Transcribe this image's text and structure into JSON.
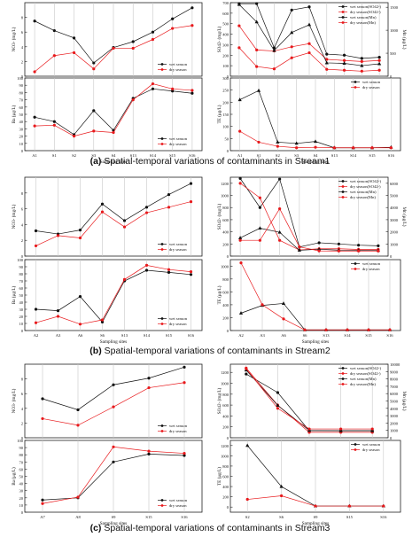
{
  "colors": {
    "wet": "#111111",
    "dry": "#e8191c",
    "grid": "#c8c8c8"
  },
  "legend": {
    "wet": "wet season",
    "dry": "dry season"
  },
  "captions": [
    {
      "label": "(a)",
      "text": "Spatial-temporal variations of contaminants in Stream1"
    },
    {
      "label": "(b)",
      "text": "Spatial-temporal variations of contaminants in Stream2"
    },
    {
      "label": "(c)",
      "text": "Spatial-temporal variations of contaminants in Stream3"
    }
  ],
  "chart_data": [
    {
      "panel": "a-left-top",
      "type": "line",
      "categories": [
        "A1",
        "S1",
        "S2",
        "S3",
        "S4",
        "S13",
        "S14",
        "S15",
        "S16"
      ],
      "ylabel": "NO3- (mg/L)",
      "ylim": [
        0,
        10
      ],
      "yticks": [
        0,
        2,
        4,
        6,
        8
      ],
      "series": [
        {
          "name": "wet season",
          "values": [
            7.5,
            6.2,
            5.2,
            1.8,
            3.9,
            4.7,
            6.0,
            7.8,
            9.3
          ]
        },
        {
          "name": "dry season",
          "values": [
            0.6,
            2.8,
            3.2,
            1.0,
            3.8,
            3.8,
            5.0,
            6.5,
            6.9
          ]
        }
      ],
      "legend_position": "bottom-right"
    },
    {
      "panel": "a-left-bottom",
      "type": "line",
      "categories": [
        "A1",
        "S1",
        "S2",
        "S3",
        "S4",
        "S13",
        "S14",
        "S15",
        "S16"
      ],
      "xlabel": "Sampling sites",
      "ylabel": "Ba (μg/L)",
      "ylim": [
        0,
        100
      ],
      "yticks": [
        0,
        10,
        20,
        30,
        40,
        50,
        60,
        70,
        80,
        90,
        100
      ],
      "series": [
        {
          "name": "wet season",
          "values": [
            46,
            40,
            22,
            55,
            28,
            72,
            85,
            82,
            79
          ]
        },
        {
          "name": "dry season",
          "values": [
            34,
            35,
            20,
            27,
            25,
            70,
            92,
            85,
            83
          ]
        }
      ],
      "legend_position": "bottom-right"
    },
    {
      "panel": "a-right-top",
      "type": "line",
      "categories": [
        "A1",
        "S1",
        "S2",
        "S3",
        "S4",
        "S13",
        "S14",
        "S15",
        "S16"
      ],
      "ylabel": "SO42- (mg/L)",
      "ylim": [
        0,
        700
      ],
      "yticks": [
        0,
        100,
        200,
        300,
        400,
        500,
        600,
        700
      ],
      "y2label": "Mn (μg/L)",
      "y2lim": [
        0,
        1600
      ],
      "y2ticks": [
        0,
        500,
        1000,
        1500
      ],
      "series": [
        {
          "name": "wet season(SO42-)",
          "axis": "left",
          "values": [
            690,
            690,
            270,
            630,
            660,
            210,
            200,
            170,
            180
          ]
        },
        {
          "name": "dry season(SO42-)",
          "axis": "left",
          "values": [
            480,
            250,
            240,
            280,
            310,
            160,
            150,
            140,
            150
          ]
        },
        {
          "name": "wet season(Mn)",
          "axis": "right",
          "values": [
            1560,
            1180,
            560,
            950,
            1120,
            290,
            280,
            230,
            270
          ]
        },
        {
          "name": "dry season(Mn)",
          "axis": "right",
          "values": [
            620,
            210,
            160,
            400,
            510,
            150,
            130,
            110,
            130
          ]
        }
      ],
      "legend_position": "top-right"
    },
    {
      "panel": "a-right-bottom",
      "type": "line",
      "categories": [
        "A1",
        "S1",
        "S2",
        "S3",
        "S4",
        "S13",
        "S14",
        "S15",
        "S16"
      ],
      "xlabel": "Sampling sites",
      "ylabel": "TE (μg/L)",
      "ylim": [
        0,
        300
      ],
      "yticks": [
        0,
        50,
        100,
        150,
        200,
        250,
        300
      ],
      "series": [
        {
          "name": "wet season",
          "values": [
            210,
            248,
            35,
            30,
            38,
            12,
            12,
            12,
            14
          ]
        },
        {
          "name": "dry season",
          "values": [
            80,
            35,
            18,
            12,
            14,
            12,
            12,
            12,
            12
          ]
        }
      ],
      "legend_position": "top-right"
    },
    {
      "panel": "b-left-top",
      "type": "line",
      "categories": [
        "A2",
        "A3",
        "A6",
        "S6",
        "S13",
        "S14",
        "S15",
        "S16"
      ],
      "ylabel": "NO3- (mg/L)",
      "ylim": [
        0,
        10
      ],
      "yticks": [
        0,
        2,
        4,
        6,
        8
      ],
      "series": [
        {
          "name": "wet season",
          "values": [
            3.2,
            2.8,
            3.3,
            6.6,
            4.5,
            6.2,
            7.8,
            9.2
          ]
        },
        {
          "name": "dry season",
          "values": [
            1.3,
            2.6,
            2.3,
            5.6,
            3.7,
            5.5,
            6.2,
            6.9
          ]
        }
      ],
      "legend_position": "bottom-right"
    },
    {
      "panel": "b-left-bottom",
      "type": "line",
      "categories": [
        "A2",
        "A3",
        "A6",
        "S6",
        "S13",
        "S14",
        "S15",
        "S16"
      ],
      "xlabel": "Sampling sites",
      "ylabel": "Ba (μg/L)",
      "ylim": [
        0,
        100
      ],
      "yticks": [
        0,
        10,
        20,
        30,
        40,
        50,
        60,
        70,
        80,
        90,
        100
      ],
      "series": [
        {
          "name": "wet season",
          "values": [
            30,
            28,
            48,
            12,
            70,
            85,
            82,
            79
          ]
        },
        {
          "name": "dry season",
          "values": [
            11,
            20,
            9,
            15,
            72,
            92,
            86,
            83
          ]
        }
      ],
      "legend_position": "bottom-right"
    },
    {
      "panel": "b-right-top",
      "type": "line",
      "categories": [
        "A2",
        "A3",
        "A6",
        "S6",
        "S13",
        "S14",
        "S15",
        "S16"
      ],
      "ylabel": "SO42- (mg/L)",
      "ylim": [
        0,
        1300
      ],
      "yticks": [
        0,
        200,
        400,
        600,
        800,
        1000,
        1200
      ],
      "y2label": "Mn (μg/L)",
      "y2lim": [
        0,
        6500
      ],
      "y2ticks": [
        0,
        1000,
        2000,
        3000,
        4000,
        5000,
        6000
      ],
      "series": [
        {
          "name": "wet season(SO42-)",
          "axis": "left",
          "values": [
            1280,
            800,
            1270,
            150,
            220,
            200,
            180,
            170
          ]
        },
        {
          "name": "dry season(SO42-)",
          "axis": "left",
          "values": [
            1200,
            960,
            260,
            100,
            120,
            120,
            110,
            110
          ]
        },
        {
          "name": "wet season(Mn)",
          "axis": "right",
          "values": [
            1500,
            2300,
            1960,
            480,
            560,
            490,
            480,
            470
          ]
        },
        {
          "name": "dry season(Mn)",
          "axis": "right",
          "values": [
            1300,
            1300,
            3900,
            760,
            430,
            420,
            420,
            420
          ]
        }
      ],
      "legend_position": "top-right"
    },
    {
      "panel": "b-right-bottom",
      "type": "line",
      "categories": [
        "A2",
        "A3",
        "A6",
        "S6",
        "S13",
        "S14",
        "S15",
        "S16"
      ],
      "xlabel": "Sampling sites",
      "ylabel": "TE (μg/L)",
      "ylim": [
        0,
        1100
      ],
      "yticks": [
        0,
        200,
        400,
        600,
        800,
        1000
      ],
      "series": [
        {
          "name": "wet season",
          "values": [
            270,
            390,
            420,
            10,
            10,
            10,
            10,
            10
          ]
        },
        {
          "name": "dry season",
          "values": [
            1050,
            400,
            180,
            10,
            10,
            10,
            10,
            10
          ]
        }
      ],
      "legend_position": "top-right"
    },
    {
      "panel": "c-left-top",
      "type": "line",
      "categories": [
        "A7",
        "A8",
        "S9",
        "S15",
        "S16"
      ],
      "ylabel": "NO3- (mg/L)",
      "ylim": [
        0,
        10
      ],
      "yticks": [
        0,
        2,
        4,
        6,
        8
      ],
      "series": [
        {
          "name": "wet season",
          "values": [
            5.3,
            3.8,
            7.2,
            8.1,
            9.6
          ]
        },
        {
          "name": "dry season",
          "values": [
            2.6,
            1.7,
            4.2,
            6.8,
            7.5
          ]
        }
      ],
      "legend_position": "bottom-right"
    },
    {
      "panel": "c-left-bottom",
      "type": "line",
      "categories": [
        "A7",
        "A8",
        "S9",
        "S15",
        "S16"
      ],
      "xlabel": "Sampling sites",
      "ylabel": "Ba (μg/L)",
      "ylim": [
        0,
        100
      ],
      "yticks": [
        0,
        10,
        20,
        30,
        40,
        50,
        60,
        70,
        80,
        90,
        100
      ],
      "series": [
        {
          "name": "wet season",
          "values": [
            17,
            20,
            70,
            81,
            79
          ]
        },
        {
          "name": "dry season",
          "values": [
            12,
            21,
            91,
            85,
            82
          ]
        }
      ],
      "legend_position": "bottom-right"
    },
    {
      "panel": "c-right-top",
      "type": "line",
      "categories": [
        "S2",
        "S6",
        "S9",
        "S15",
        "S16"
      ],
      "ylabel": "SO42- (mg/L)",
      "ylim": [
        0,
        1350
      ],
      "yticks": [
        0,
        200,
        400,
        600,
        800,
        1000,
        1200
      ],
      "y2label": "Mn (μg/L)",
      "y2lim": [
        0,
        10000
      ],
      "y2ticks": [
        0,
        1000,
        2000,
        3000,
        4000,
        5000,
        6000,
        7000,
        8000,
        9000,
        10000
      ],
      "series": [
        {
          "name": "wet season(SO42-)",
          "axis": "left",
          "values": [
            1170,
            830,
            130,
            130,
            130
          ]
        },
        {
          "name": "dry season(SO42-)",
          "axis": "left",
          "values": [
            1280,
            600,
            100,
            100,
            100
          ]
        },
        {
          "name": "wet season(Mn)",
          "axis": "right",
          "values": [
            9200,
            4400,
            1000,
            950,
            950
          ]
        },
        {
          "name": "dry season(Mn)",
          "axis": "right",
          "values": [
            9400,
            4000,
            1200,
            1200,
            1200
          ]
        }
      ],
      "legend_position": "top-right"
    },
    {
      "panel": "c-right-bottom",
      "type": "line",
      "categories": [
        "S2",
        "S6",
        "S9",
        "S15",
        "S16"
      ],
      "xlabel": "Sampling sites",
      "ylabel": "TE (μg/L)",
      "ylim": [
        -100,
        1300
      ],
      "yticks": [
        0,
        200,
        400,
        600,
        800,
        1000,
        1200
      ],
      "series": [
        {
          "name": "wet season",
          "values": [
            1200,
            400,
            20,
            20,
            20
          ]
        },
        {
          "name": "dry season",
          "values": [
            150,
            220,
            20,
            20,
            20
          ]
        }
      ],
      "legend_position": "top-right"
    }
  ]
}
